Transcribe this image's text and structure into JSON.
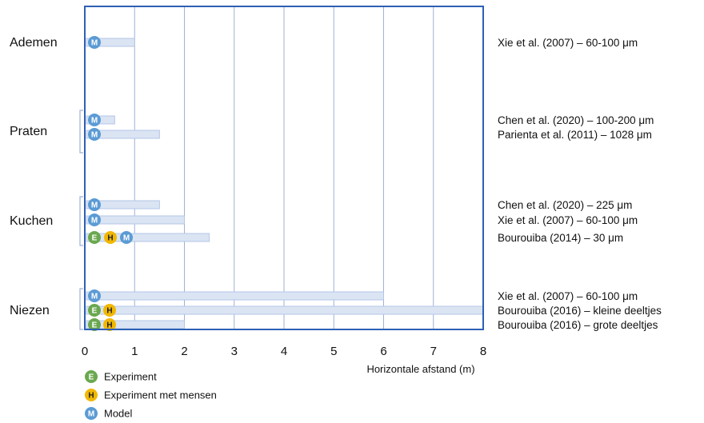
{
  "chart_data": {
    "type": "bar",
    "orientation": "horizontal",
    "xlabel": "Horizontale afstand (m)",
    "xlim": [
      0,
      8
    ],
    "xticks": [
      "0",
      "1",
      "2",
      "3",
      "4",
      "5",
      "6",
      "7",
      "8"
    ],
    "grid": "vertical",
    "legend_position": "bottom-left",
    "categories": [
      {
        "name": "Ademen",
        "rows": [
          {
            "value": 1.0,
            "markers": [
              "M"
            ],
            "reference": "Xie et al. (2007) – 60-100 μm"
          }
        ]
      },
      {
        "name": "Praten",
        "rows": [
          {
            "value": 0.6,
            "markers": [
              "M"
            ],
            "reference": "Chen et al. (2020) – 100-200 μm"
          },
          {
            "value": 1.5,
            "markers": [
              "M"
            ],
            "reference": "Parienta et al. (2011) – 1028 μm"
          }
        ]
      },
      {
        "name": "Kuchen",
        "rows": [
          {
            "value": 1.5,
            "markers": [
              "M"
            ],
            "reference": "Chen et al. (2020) – 225 μm"
          },
          {
            "value": 2.0,
            "markers": [
              "M"
            ],
            "reference": "Xie et al. (2007) – 60-100 μm"
          },
          {
            "value": 2.5,
            "markers": [
              "E",
              "H",
              "M"
            ],
            "reference": "Bourouiba (2014) – 30 μm"
          }
        ]
      },
      {
        "name": "Niezen",
        "rows": [
          {
            "value": 6.0,
            "markers": [
              "M"
            ],
            "reference": "Xie et al. (2007) – 60-100 μm"
          },
          {
            "value": 8.0,
            "markers": [
              "E",
              "H"
            ],
            "reference": "Bourouiba (2016) – kleine deeltjes"
          },
          {
            "value": 2.0,
            "markers": [
              "E",
              "H"
            ],
            "reference": "Bourouiba (2016) – grote deeltjes"
          }
        ]
      }
    ],
    "legend": [
      {
        "key": "E",
        "label": "Experiment",
        "color": "#6aa84f"
      },
      {
        "key": "H",
        "label": "Experiment met mensen",
        "color": "#f1b800"
      },
      {
        "key": "M",
        "label": "Model",
        "color": "#5b9bd5"
      }
    ],
    "colors": {
      "frame": "#2e5fb5",
      "grid": "#9db1d6",
      "bar_fill": "#dae4f3",
      "bar_stroke": "#b4c6e7",
      "bracket": "#9db1d6"
    }
  }
}
